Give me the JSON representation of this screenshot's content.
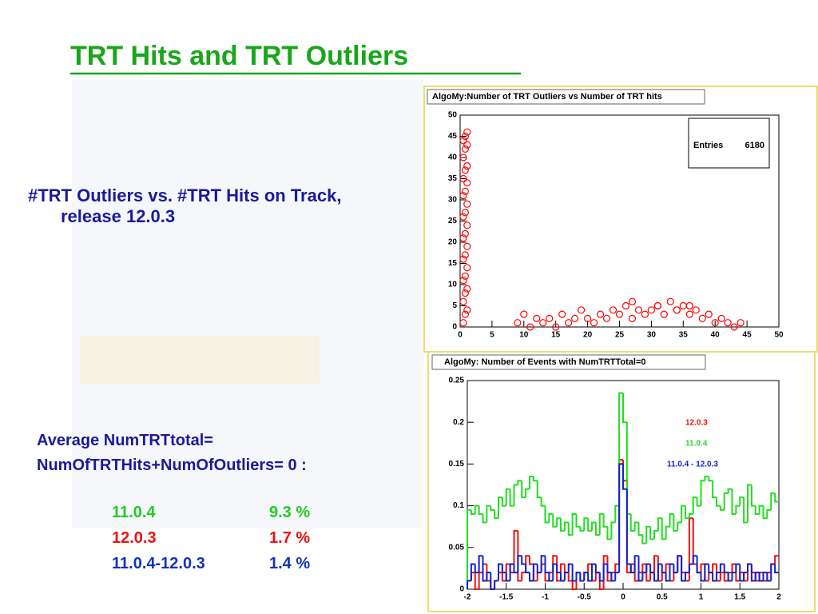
{
  "slide": {
    "title": "TRT Hits and TRT Outliers",
    "caption": "#TRT Outliers vs. #TRT Hits on Track,  release 12.0.3",
    "average_lines": [
      "Average  NumTRTtotal=",
      "NumOfTRTHits+NumOfOutliers= 0 :"
    ],
    "table": {
      "rows": [
        [
          "11.0.4",
          "9.3 %"
        ],
        [
          "12.0.3",
          "1.7 %"
        ],
        [
          "11.0.4-12.0.3",
          "1.4 %"
        ]
      ],
      "colors": [
        "#22cc22",
        "#ee1111",
        "#1133bb"
      ]
    }
  },
  "chart_data": [
    {
      "type": "scatter",
      "title": "AlgoMy:Number of TRT Outliers vs Number of TRT hits",
      "stats": {
        "label": "Entries",
        "value": 6180
      },
      "color": "#ff0000",
      "x": [
        0.5,
        0.8,
        1.1,
        0.5,
        0.8,
        1.1,
        0.5,
        0.8,
        1.1,
        0.5,
        0.8,
        1.1,
        0.5,
        0.8,
        1.1,
        0.5,
        0.8,
        1.1,
        0.5,
        0.8,
        1.1,
        0.5,
        0.8,
        1.1,
        0.5,
        0.8,
        1.1,
        0.5,
        0.8,
        1.1,
        9,
        10,
        11,
        12,
        13,
        14,
        15,
        16,
        17,
        18,
        19,
        20,
        21,
        22,
        23,
        24,
        25,
        26,
        27,
        28,
        29,
        30,
        31,
        32,
        33,
        34,
        35,
        36,
        37,
        38,
        39,
        40,
        41,
        42,
        43,
        44,
        27,
        31,
        34,
        36
      ],
      "y": [
        1,
        3,
        4,
        6,
        8,
        9,
        11,
        12,
        14,
        16,
        17,
        19,
        21,
        22,
        24,
        26,
        27,
        29,
        31,
        32,
        34,
        35,
        37,
        38,
        40,
        42,
        43,
        44,
        45,
        46,
        1,
        3,
        0,
        2,
        1,
        2,
        0,
        3,
        1,
        2,
        4,
        2,
        1,
        3,
        2,
        4,
        3,
        5,
        2,
        4,
        3,
        4,
        5,
        3,
        6,
        4,
        5,
        3,
        4,
        2,
        3,
        1,
        2,
        1,
        0,
        1,
        6,
        5,
        4,
        5
      ],
      "xlim": [
        0,
        50
      ],
      "ylim": [
        0,
        50
      ],
      "xticks": [
        0,
        5,
        10,
        15,
        20,
        25,
        30,
        35,
        40,
        45,
        50
      ],
      "yticks": [
        0,
        5,
        10,
        15,
        20,
        25,
        30,
        35,
        40,
        45,
        50
      ]
    },
    {
      "type": "histogram",
      "title": "AlgoMy: Number of Events with NumTRTTotal=0",
      "bins": [
        -2,
        -1.95,
        -1.9,
        -1.85,
        -1.8,
        -1.75,
        -1.7,
        -1.65,
        -1.6,
        -1.55,
        -1.5,
        -1.45,
        -1.4,
        -1.35,
        -1.3,
        -1.25,
        -1.2,
        -1.15,
        -1.1,
        -1.05,
        -1,
        -0.95,
        -0.9,
        -0.85,
        -0.8,
        -0.75,
        -0.7,
        -0.65,
        -0.6,
        -0.55,
        -0.5,
        -0.45,
        -0.4,
        -0.35,
        -0.3,
        -0.25,
        -0.2,
        -0.15,
        -0.1,
        -0.05,
        0,
        0.05,
        0.1,
        0.15,
        0.2,
        0.25,
        0.3,
        0.35,
        0.4,
        0.45,
        0.5,
        0.55,
        0.6,
        0.65,
        0.7,
        0.75,
        0.8,
        0.85,
        0.9,
        0.95,
        1,
        1.05,
        1.1,
        1.15,
        1.2,
        1.25,
        1.3,
        1.35,
        1.4,
        1.45,
        1.5,
        1.55,
        1.6,
        1.65,
        1.7,
        1.75,
        1.8,
        1.85,
        1.9,
        1.95,
        2
      ],
      "series": [
        {
          "name": "12.0.3",
          "color": "#ee1111",
          "values": [
            0.01,
            0.02,
            0,
            0.02,
            0.03,
            0.01,
            0,
            0.01,
            0.02,
            0.01,
            0.03,
            0.02,
            0.07,
            0.01,
            0.02,
            0.04,
            0.03,
            0.01,
            0.02,
            0.03,
            0.01,
            0.02,
            0.04,
            0.01,
            0.03,
            0.02,
            0.01,
            0,
            0.02,
            0.01,
            0.02,
            0.03,
            0.01,
            0.02,
            0,
            0.04,
            0.01,
            0.02,
            0.03,
            0.155,
            0.13,
            0.02,
            0.03,
            0.01,
            0.02,
            0.03,
            0.01,
            0.02,
            0.04,
            0.01,
            0.02,
            0.03,
            0.01,
            0.02,
            0.04,
            0.02,
            0.01,
            0.085,
            0.03,
            0.02,
            0.03,
            0.01,
            0.02,
            0.03,
            0.01,
            0.02,
            0.01,
            0.02,
            0.03,
            0.01,
            0.02,
            0.01,
            0.03,
            0.02,
            0.01,
            0.02,
            0.01,
            0.02,
            0.03,
            0.04
          ]
        },
        {
          "name": "11.0.4",
          "color": "#22dd22",
          "values": [
            0.095,
            0.09,
            0.1,
            0.09,
            0.08,
            0.1,
            0.095,
            0.085,
            0.11,
            0.1,
            0.12,
            0.1,
            0.125,
            0.13,
            0.11,
            0.12,
            0.135,
            0.13,
            0.11,
            0.1,
            0.08,
            0.09,
            0.075,
            0.085,
            0.07,
            0.08,
            0.065,
            0.09,
            0.075,
            0.07,
            0.085,
            0.07,
            0.08,
            0.065,
            0.09,
            0.075,
            0.06,
            0.08,
            0.1,
            0.235,
            0.2,
            0.09,
            0.07,
            0.08,
            0.065,
            0.055,
            0.075,
            0.06,
            0.07,
            0.085,
            0.06,
            0.075,
            0.09,
            0.07,
            0.08,
            0.1,
            0.085,
            0.09,
            0.11,
            0.1,
            0.13,
            0.135,
            0.13,
            0.11,
            0.1,
            0.095,
            0.115,
            0.12,
            0.09,
            0.1,
            0.11,
            0.08,
            0.125,
            0.1,
            0.09,
            0.1,
            0.085,
            0.095,
            0.115,
            0.105
          ]
        },
        {
          "name": "11.0.4 - 12.0.3",
          "color": "#1122cc",
          "values": [
            0.01,
            0.03,
            0.02,
            0.04,
            0.01,
            0.02,
            0,
            0.01,
            0.03,
            0.02,
            0.01,
            0.03,
            0.02,
            0.04,
            0.03,
            0.02,
            0.01,
            0.03,
            0.02,
            0.04,
            0.02,
            0.01,
            0.03,
            0.02,
            0.01,
            0.02,
            0.03,
            0.01,
            0.02,
            0.01,
            0.02,
            0.01,
            0.03,
            0.02,
            0.01,
            0.03,
            0.02,
            0.01,
            0.02,
            0.15,
            0.12,
            0.03,
            0.02,
            0.04,
            0.01,
            0.02,
            0.03,
            0.02,
            0.01,
            0.03,
            0.02,
            0.01,
            0.03,
            0.02,
            0.04,
            0.01,
            0.02,
            0.03,
            0.04,
            0.02,
            0.01,
            0.03,
            0.02,
            0.01,
            0.02,
            0.03,
            0.02,
            0.01,
            0.02,
            0.03,
            0.01,
            0.02,
            0.03,
            0.01,
            0.02,
            0.01,
            0.02,
            0.01,
            0.03,
            0.02
          ]
        }
      ],
      "xlim": [
        -2,
        2
      ],
      "ylim": [
        0,
        0.25
      ],
      "xticks": [
        -2,
        -1.5,
        -1,
        -0.5,
        0,
        0.5,
        1,
        1.5,
        2
      ],
      "yticks": [
        0,
        0.05,
        0.1,
        0.15,
        0.2,
        0.25
      ]
    }
  ]
}
